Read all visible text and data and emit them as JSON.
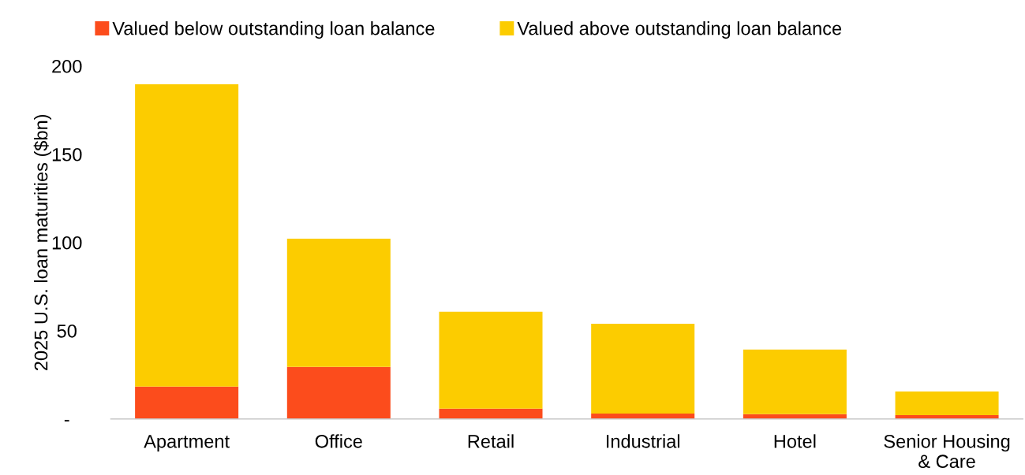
{
  "chart_data": {
    "type": "bar",
    "stacked": true,
    "ylabel": "2025 U.S. loan maturities ($bn)",
    "categories": [
      "Apartment",
      "Office",
      "Retail",
      "Industrial",
      "Hotel",
      "Senior Housing\n& Care"
    ],
    "series": [
      {
        "name": "Valued below outstanding loan balance",
        "color": "#fc4c1c",
        "values": [
          18.3,
          29.5,
          5.8,
          3.1,
          2.7,
          2.2
        ]
      },
      {
        "name": "Valued above outstanding loan balance",
        "color": "#fccc00",
        "values": [
          171.4,
          72.7,
          54.9,
          50.9,
          36.6,
          13.4
        ]
      }
    ],
    "ylim": [
      0,
      200
    ],
    "yticks": [
      {
        "value": 0,
        "label": "-"
      },
      50,
      100,
      150,
      200
    ],
    "grid": false,
    "legend": "top"
  }
}
